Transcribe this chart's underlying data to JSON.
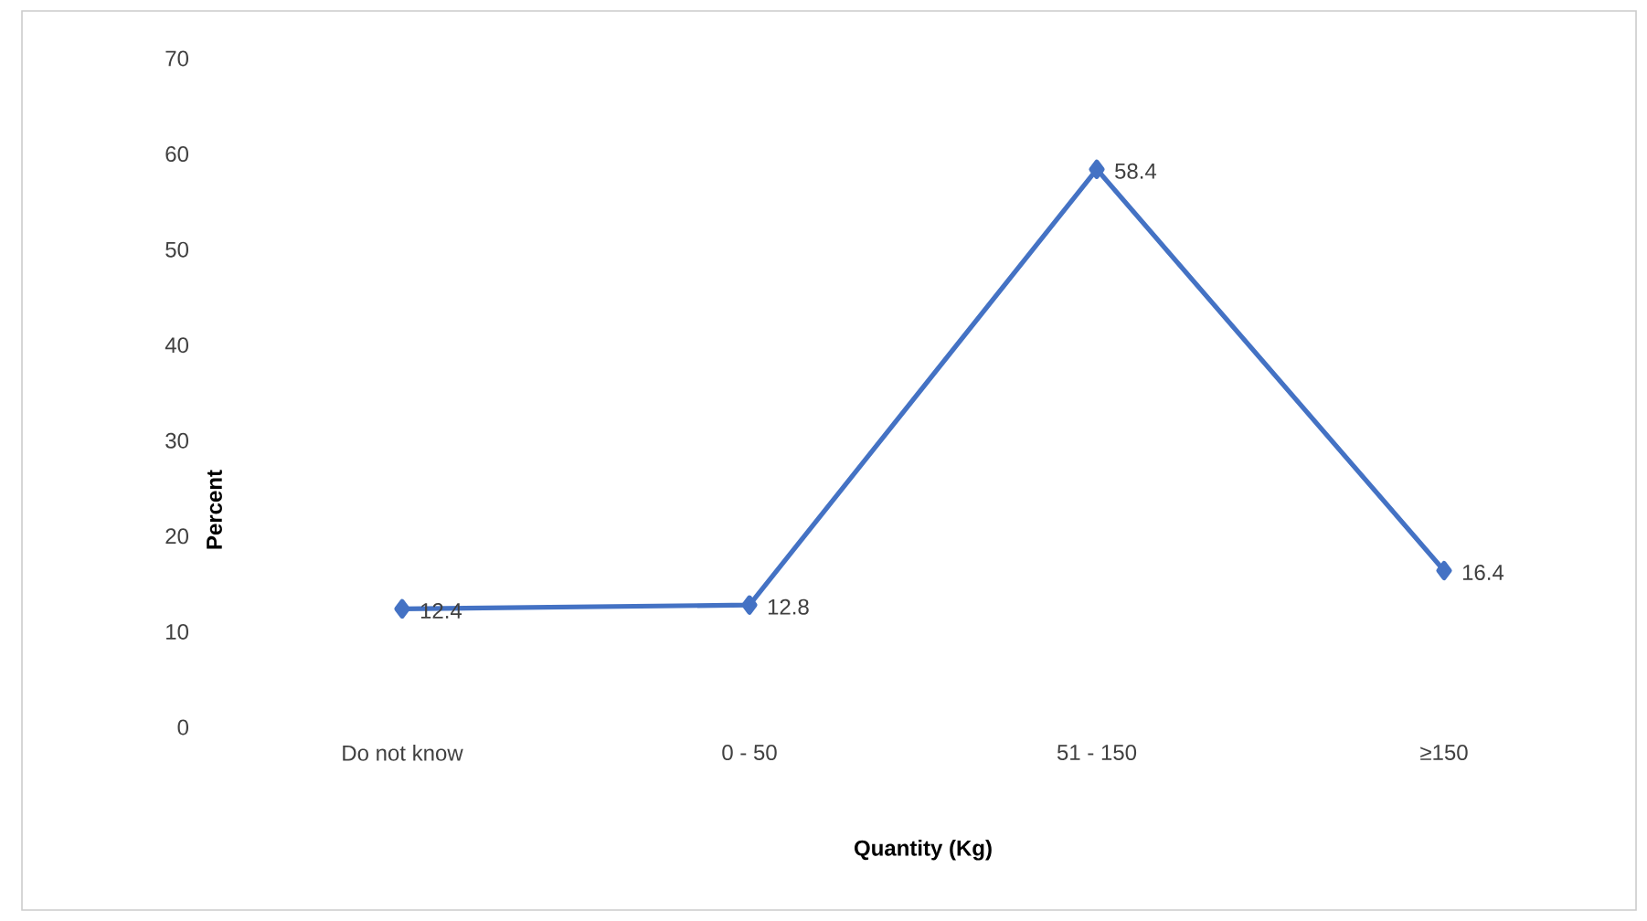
{
  "chart_data": {
    "type": "line",
    "xlabel": "Quantity (Kg)",
    "ylabel": "Percent",
    "categories": [
      "Do not know",
      "0 - 50",
      "51 - 150",
      "≥150"
    ],
    "values": [
      12.4,
      12.8,
      58.4,
      16.4
    ],
    "color": "#4472c4",
    "ylim": [
      0,
      70
    ],
    "yticks": [
      0,
      10,
      20,
      30,
      40,
      50,
      60,
      70
    ],
    "marker": "diamond",
    "line_style": "solid",
    "data_labels": true
  }
}
